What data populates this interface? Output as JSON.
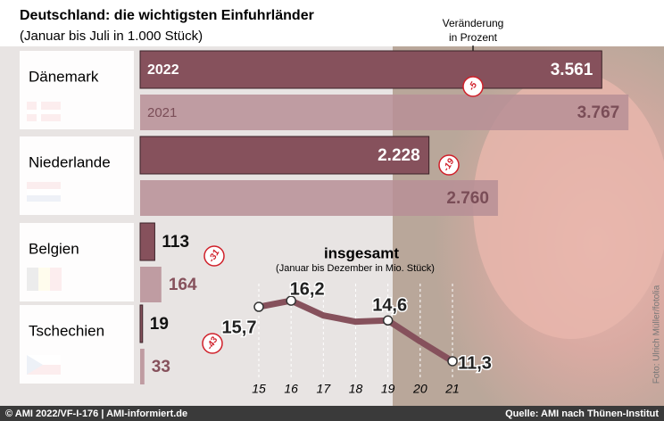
{
  "header": {
    "title": "Deutschland: die wichtigsten Einfuhrländer",
    "subtitle": "(Januar bis Juli in 1.000 Stück)"
  },
  "chart_data": [
    {
      "type": "bar",
      "annotation": [
        "Veränderung",
        "in Prozent"
      ],
      "categories": [
        "Dänemark",
        "Niederlande",
        "Belgien",
        "Tschechien"
      ],
      "series": [
        {
          "name": "2022",
          "color": "#86515c",
          "values": [
            3561,
            2228,
            113,
            19
          ],
          "value_labels": [
            "3.561",
            "2.228",
            "113",
            "19"
          ]
        },
        {
          "name": "2021",
          "color": "#b78f97",
          "values": [
            3767,
            2760,
            164,
            33
          ],
          "value_labels": [
            "3.767",
            "2.760",
            "164",
            "33"
          ]
        }
      ],
      "changes": [
        -5,
        -19,
        -31,
        -43
      ],
      "xlim": [
        0,
        3800
      ]
    },
    {
      "type": "line",
      "title": "insgesamt",
      "subtitle": "(Januar bis Dezember in Mio. Stück)",
      "x": [
        15,
        16,
        17,
        18,
        19,
        20,
        21
      ],
      "xticks": [
        15,
        16,
        17,
        18,
        19,
        20,
        21
      ],
      "xlim": [
        15,
        21
      ],
      "ylim": [
        10,
        17
      ],
      "grid": true,
      "series": [
        {
          "color": "#86515c",
          "values": [
            15.7,
            16.2,
            15.0,
            14.5,
            14.6,
            12.9,
            11.3
          ],
          "value_labels": [
            "15,7",
            "16,2",
            null,
            null,
            "14,6",
            null,
            "11,3"
          ]
        }
      ]
    }
  ],
  "footer": {
    "left": "© AMI 2022/VF-I-176 | AMI-informiert.de",
    "right": "Quelle: AMI nach Thünen-Institut",
    "credit": "Foto: Ulrich Müller/fotolia"
  }
}
